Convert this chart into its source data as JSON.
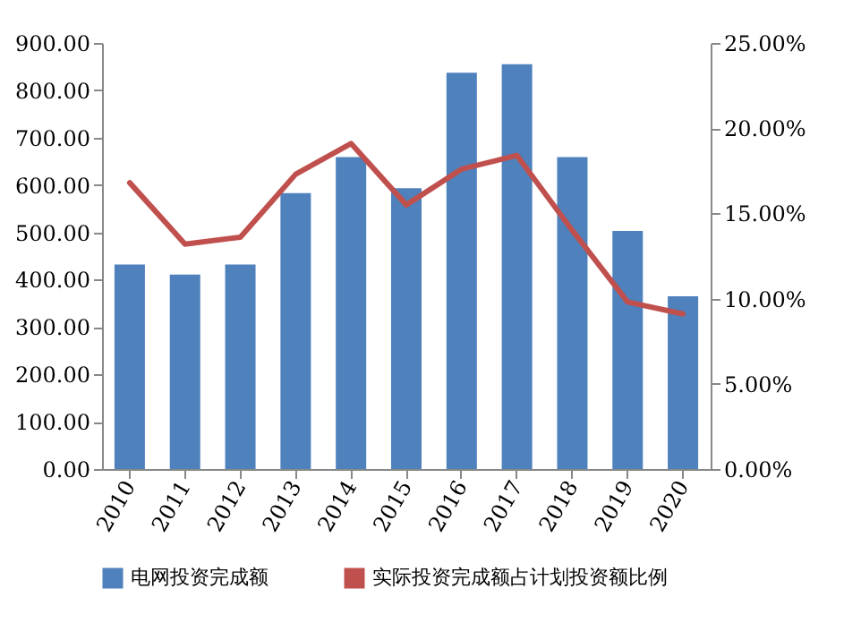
{
  "chart_data": {
    "type": "bar",
    "categories": [
      "2010",
      "2011",
      "2012",
      "2013",
      "2014",
      "2015",
      "2016",
      "2017",
      "2018",
      "2019",
      "2020"
    ],
    "series": [
      {
        "name": "电网投资完成额",
        "color": "#4f81bd",
        "values": [
          432,
          411,
          432,
          583,
          659,
          593,
          837,
          855,
          659,
          503,
          365
        ]
      },
      {
        "name": "实际投资完成额占计划投资额比例",
        "type": "line",
        "axis": "y2",
        "color": "#c0504d",
        "values": [
          16.8,
          13.2,
          13.6,
          17.3,
          19.1,
          15.5,
          17.6,
          18.4,
          14.0,
          9.8,
          9.1
        ]
      }
    ],
    "ylim": [
      0,
      900
    ],
    "yticks": [
      {
        "value": 0,
        "label": "0.00"
      },
      {
        "value": 100,
        "label": "100.00"
      },
      {
        "value": 200,
        "label": "200.00"
      },
      {
        "value": 300,
        "label": "300.00"
      },
      {
        "value": 400,
        "label": "400.00"
      },
      {
        "value": 500,
        "label": "500.00"
      },
      {
        "value": 600,
        "label": "600.00"
      },
      {
        "value": 700,
        "label": "700.00"
      },
      {
        "value": 800,
        "label": "800.00"
      },
      {
        "value": 900,
        "label": "900.00"
      }
    ],
    "y2lim": [
      0,
      25
    ],
    "y2ticks": [
      {
        "value": 0,
        "label": "0.00%"
      },
      {
        "value": 5,
        "label": "5.00%"
      },
      {
        "value": 10,
        "label": "10.00%"
      },
      {
        "value": 15,
        "label": "15.00%"
      },
      {
        "value": 20,
        "label": "20.00%"
      },
      {
        "value": 25,
        "label": "25.00%"
      }
    ],
    "grid": false,
    "legend": "bottom"
  }
}
